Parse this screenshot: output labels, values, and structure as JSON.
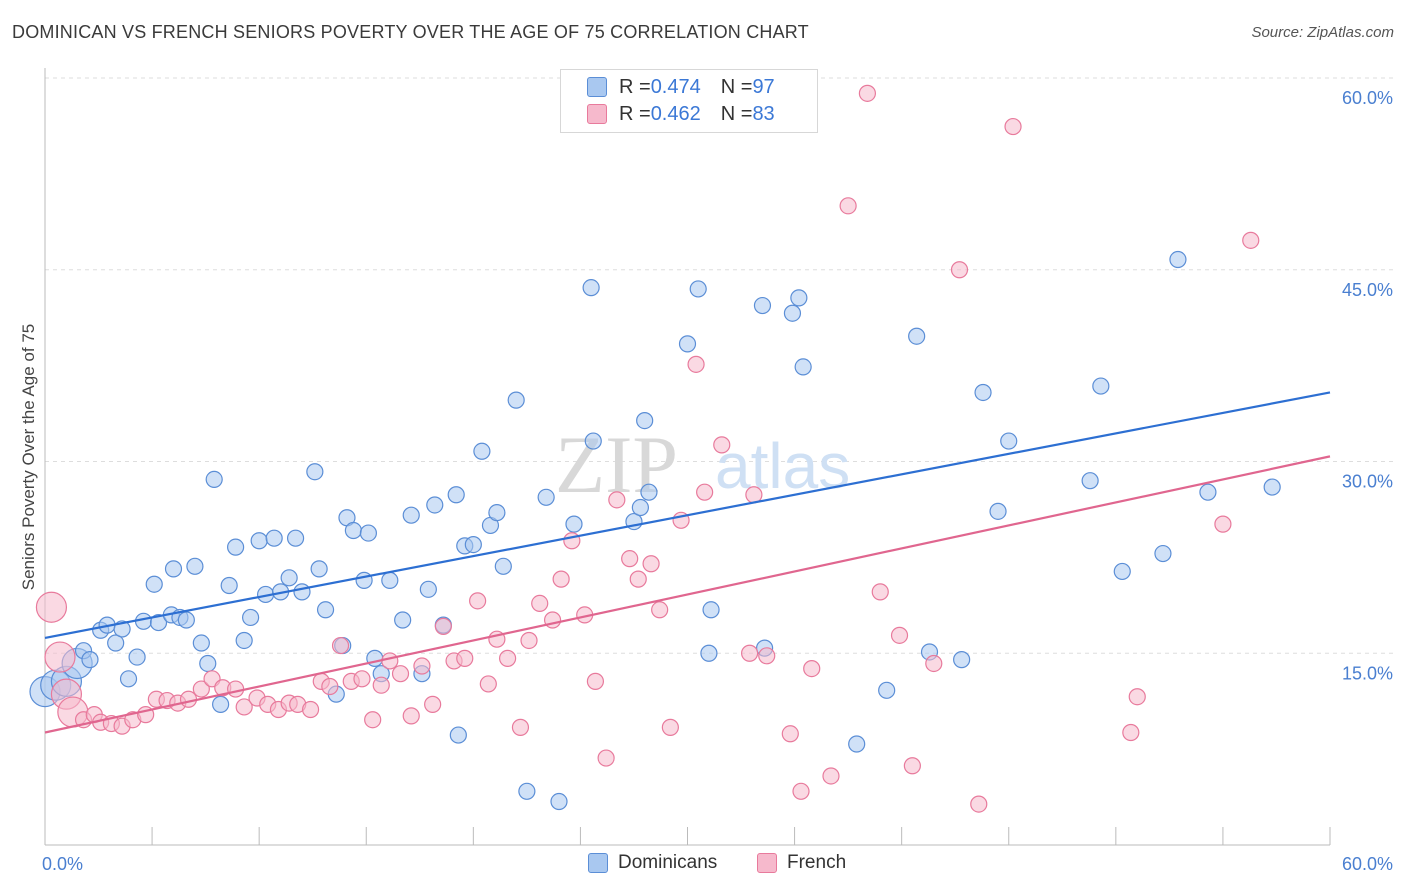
{
  "title": "DOMINICAN VS FRENCH SENIORS POVERTY OVER THE AGE OF 75 CORRELATION CHART",
  "source": "Source: ZipAtlas.com",
  "watermark": "ZIPatlas",
  "legend": {
    "rows": [
      {
        "r_label": "R = ",
        "r_value": "0.474",
        "n_label": "N = ",
        "n_value": "97"
      },
      {
        "r_label": "R = ",
        "r_value": "0.462",
        "n_label": "N = ",
        "n_value": "83"
      }
    ]
  },
  "bottom_legend": [
    "Dominicans",
    "French"
  ],
  "colors": {
    "blue_fill": "#a9c8f0",
    "blue_stroke": "#5b8ed6",
    "blue_line": "#2d6fd2",
    "pink_fill": "#f6b9cc",
    "pink_stroke": "#e87a9c",
    "pink_line": "#e0668f",
    "grid": "#dddddd",
    "tick_text": "#4a7fd0"
  },
  "chart_data": {
    "type": "scatter",
    "title": "DOMINICAN VS FRENCH SENIORS POVERTY OVER THE AGE OF 75 CORRELATION CHART",
    "xlabel": "",
    "ylabel": "Seniors Poverty Over the Age of 75",
    "xlim": [
      0,
      60
    ],
    "ylim": [
      0,
      60
    ],
    "x_tick_labels": [
      "0.0%",
      "60.0%"
    ],
    "y_tick_labels": [
      "15.0%",
      "30.0%",
      "45.0%",
      "60.0%"
    ],
    "y_ticks": [
      15,
      30,
      45,
      60
    ],
    "grid": true,
    "legend_position": "top-center",
    "series": [
      {
        "name": "Dominicans",
        "color": "#a9c8f0",
        "r": 0.474,
        "n": 97,
        "trend": {
          "x": [
            0,
            60
          ],
          "y": [
            16.2,
            35.4
          ]
        },
        "points": [
          [
            0,
            12.0
          ],
          [
            0.5,
            12.5
          ],
          [
            1,
            12.8
          ],
          [
            1.5,
            14.2
          ],
          [
            1.8,
            15.2
          ],
          [
            2.1,
            14.5
          ],
          [
            2.6,
            16.8
          ],
          [
            2.9,
            17.2
          ],
          [
            3.3,
            15.8
          ],
          [
            3.6,
            16.9
          ],
          [
            3.9,
            13.0
          ],
          [
            4.3,
            14.7
          ],
          [
            4.6,
            17.5
          ],
          [
            5.1,
            20.4
          ],
          [
            5.3,
            17.4
          ],
          [
            5.9,
            18.0
          ],
          [
            6.0,
            21.6
          ],
          [
            6.3,
            17.8
          ],
          [
            6.6,
            17.6
          ],
          [
            7.0,
            21.8
          ],
          [
            7.3,
            15.8
          ],
          [
            7.6,
            14.2
          ],
          [
            7.9,
            28.6
          ],
          [
            8.2,
            11.0
          ],
          [
            8.6,
            20.3
          ],
          [
            8.9,
            23.3
          ],
          [
            9.3,
            16.0
          ],
          [
            9.6,
            17.8
          ],
          [
            10.0,
            23.8
          ],
          [
            10.3,
            19.6
          ],
          [
            10.7,
            24.0
          ],
          [
            11.0,
            19.8
          ],
          [
            11.4,
            20.9
          ],
          [
            11.7,
            24.0
          ],
          [
            12.0,
            19.8
          ],
          [
            12.6,
            29.2
          ],
          [
            12.8,
            21.6
          ],
          [
            13.1,
            18.4
          ],
          [
            13.6,
            11.8
          ],
          [
            13.9,
            15.6
          ],
          [
            14.1,
            25.6
          ],
          [
            14.4,
            24.6
          ],
          [
            14.9,
            20.7
          ],
          [
            15.1,
            24.4
          ],
          [
            15.4,
            14.6
          ],
          [
            15.7,
            13.4
          ],
          [
            16.1,
            20.7
          ],
          [
            16.7,
            17.6
          ],
          [
            17.1,
            25.8
          ],
          [
            17.6,
            13.4
          ],
          [
            17.9,
            20.0
          ],
          [
            18.2,
            26.6
          ],
          [
            18.6,
            17.2
          ],
          [
            19.2,
            27.4
          ],
          [
            19.3,
            8.6
          ],
          [
            19.6,
            23.4
          ],
          [
            20.0,
            23.5
          ],
          [
            20.4,
            30.8
          ],
          [
            20.8,
            25.0
          ],
          [
            21.1,
            26.0
          ],
          [
            21.4,
            21.8
          ],
          [
            22.0,
            34.8
          ],
          [
            22.5,
            4.2
          ],
          [
            23.4,
            27.2
          ],
          [
            24.0,
            3.4
          ],
          [
            24.7,
            25.1
          ],
          [
            25.5,
            43.6
          ],
          [
            25.6,
            31.6
          ],
          [
            27.5,
            25.3
          ],
          [
            27.8,
            26.4
          ],
          [
            28.0,
            33.2
          ],
          [
            28.2,
            27.6
          ],
          [
            30.0,
            39.2
          ],
          [
            30.5,
            43.5
          ],
          [
            31.0,
            15.0
          ],
          [
            31.1,
            18.4
          ],
          [
            32.3,
            58.0
          ],
          [
            33.5,
            42.2
          ],
          [
            33.6,
            15.4
          ],
          [
            34.9,
            41.6
          ],
          [
            35.2,
            42.8
          ],
          [
            35.4,
            37.4
          ],
          [
            37.9,
            7.9
          ],
          [
            39.3,
            12.1
          ],
          [
            40.7,
            39.8
          ],
          [
            41.3,
            15.1
          ],
          [
            42.8,
            14.5
          ],
          [
            43.8,
            35.4
          ],
          [
            44.5,
            26.1
          ],
          [
            45.0,
            31.6
          ],
          [
            48.8,
            28.5
          ],
          [
            49.3,
            35.9
          ],
          [
            50.3,
            21.4
          ],
          [
            52.2,
            22.8
          ],
          [
            52.9,
            45.8
          ],
          [
            54.3,
            27.6
          ],
          [
            57.3,
            28.0
          ]
        ]
      },
      {
        "name": "French",
        "color": "#f6b9cc",
        "r": 0.462,
        "n": 83,
        "trend": {
          "x": [
            0,
            60
          ],
          "y": [
            8.8,
            30.4
          ]
        },
        "points": [
          [
            0.3,
            18.6
          ],
          [
            0.7,
            14.7
          ],
          [
            1.0,
            11.8
          ],
          [
            1.3,
            10.4
          ],
          [
            1.8,
            9.8
          ],
          [
            2.3,
            10.2
          ],
          [
            2.6,
            9.6
          ],
          [
            3.1,
            9.5
          ],
          [
            3.6,
            9.3
          ],
          [
            4.1,
            9.8
          ],
          [
            4.7,
            10.2
          ],
          [
            5.2,
            11.4
          ],
          [
            5.7,
            11.3
          ],
          [
            6.2,
            11.1
          ],
          [
            6.7,
            11.4
          ],
          [
            7.3,
            12.2
          ],
          [
            7.8,
            13.0
          ],
          [
            8.3,
            12.3
          ],
          [
            8.9,
            12.2
          ],
          [
            9.3,
            10.8
          ],
          [
            9.9,
            11.5
          ],
          [
            10.4,
            11.0
          ],
          [
            10.9,
            10.6
          ],
          [
            11.4,
            11.1
          ],
          [
            11.8,
            11.0
          ],
          [
            12.4,
            10.6
          ],
          [
            12.9,
            12.8
          ],
          [
            13.3,
            12.4
          ],
          [
            13.8,
            15.6
          ],
          [
            14.3,
            12.8
          ],
          [
            14.8,
            13.0
          ],
          [
            15.3,
            9.8
          ],
          [
            15.7,
            12.5
          ],
          [
            16.1,
            14.4
          ],
          [
            16.6,
            13.4
          ],
          [
            17.1,
            10.1
          ],
          [
            17.6,
            14.0
          ],
          [
            18.1,
            11.0
          ],
          [
            18.6,
            17.1
          ],
          [
            19.1,
            14.4
          ],
          [
            19.6,
            14.6
          ],
          [
            20.2,
            19.1
          ],
          [
            20.7,
            12.6
          ],
          [
            21.1,
            16.1
          ],
          [
            21.6,
            14.6
          ],
          [
            22.2,
            9.2
          ],
          [
            22.6,
            16.0
          ],
          [
            23.1,
            18.9
          ],
          [
            23.7,
            17.6
          ],
          [
            24.1,
            20.8
          ],
          [
            24.6,
            23.8
          ],
          [
            25.2,
            18.0
          ],
          [
            25.7,
            12.8
          ],
          [
            26.2,
            6.8
          ],
          [
            26.7,
            27.0
          ],
          [
            27.3,
            22.4
          ],
          [
            27.7,
            20.8
          ],
          [
            28.3,
            22.0
          ],
          [
            28.7,
            18.4
          ],
          [
            29.2,
            9.2
          ],
          [
            29.7,
            25.4
          ],
          [
            30.4,
            37.6
          ],
          [
            30.8,
            27.6
          ],
          [
            31.6,
            31.3
          ],
          [
            32.9,
            15.0
          ],
          [
            33.1,
            27.4
          ],
          [
            33.7,
            14.8
          ],
          [
            34.8,
            8.7
          ],
          [
            35.3,
            4.2
          ],
          [
            35.8,
            13.8
          ],
          [
            36.7,
            5.4
          ],
          [
            37.5,
            50.0
          ],
          [
            38.4,
            58.8
          ],
          [
            39.0,
            19.8
          ],
          [
            39.9,
            16.4
          ],
          [
            40.5,
            6.2
          ],
          [
            41.5,
            14.2
          ],
          [
            42.7,
            45.0
          ],
          [
            43.6,
            3.2
          ],
          [
            45.2,
            56.2
          ],
          [
            50.7,
            8.8
          ],
          [
            51.0,
            11.6
          ],
          [
            55.0,
            25.1
          ],
          [
            56.3,
            47.3
          ]
        ]
      }
    ]
  }
}
